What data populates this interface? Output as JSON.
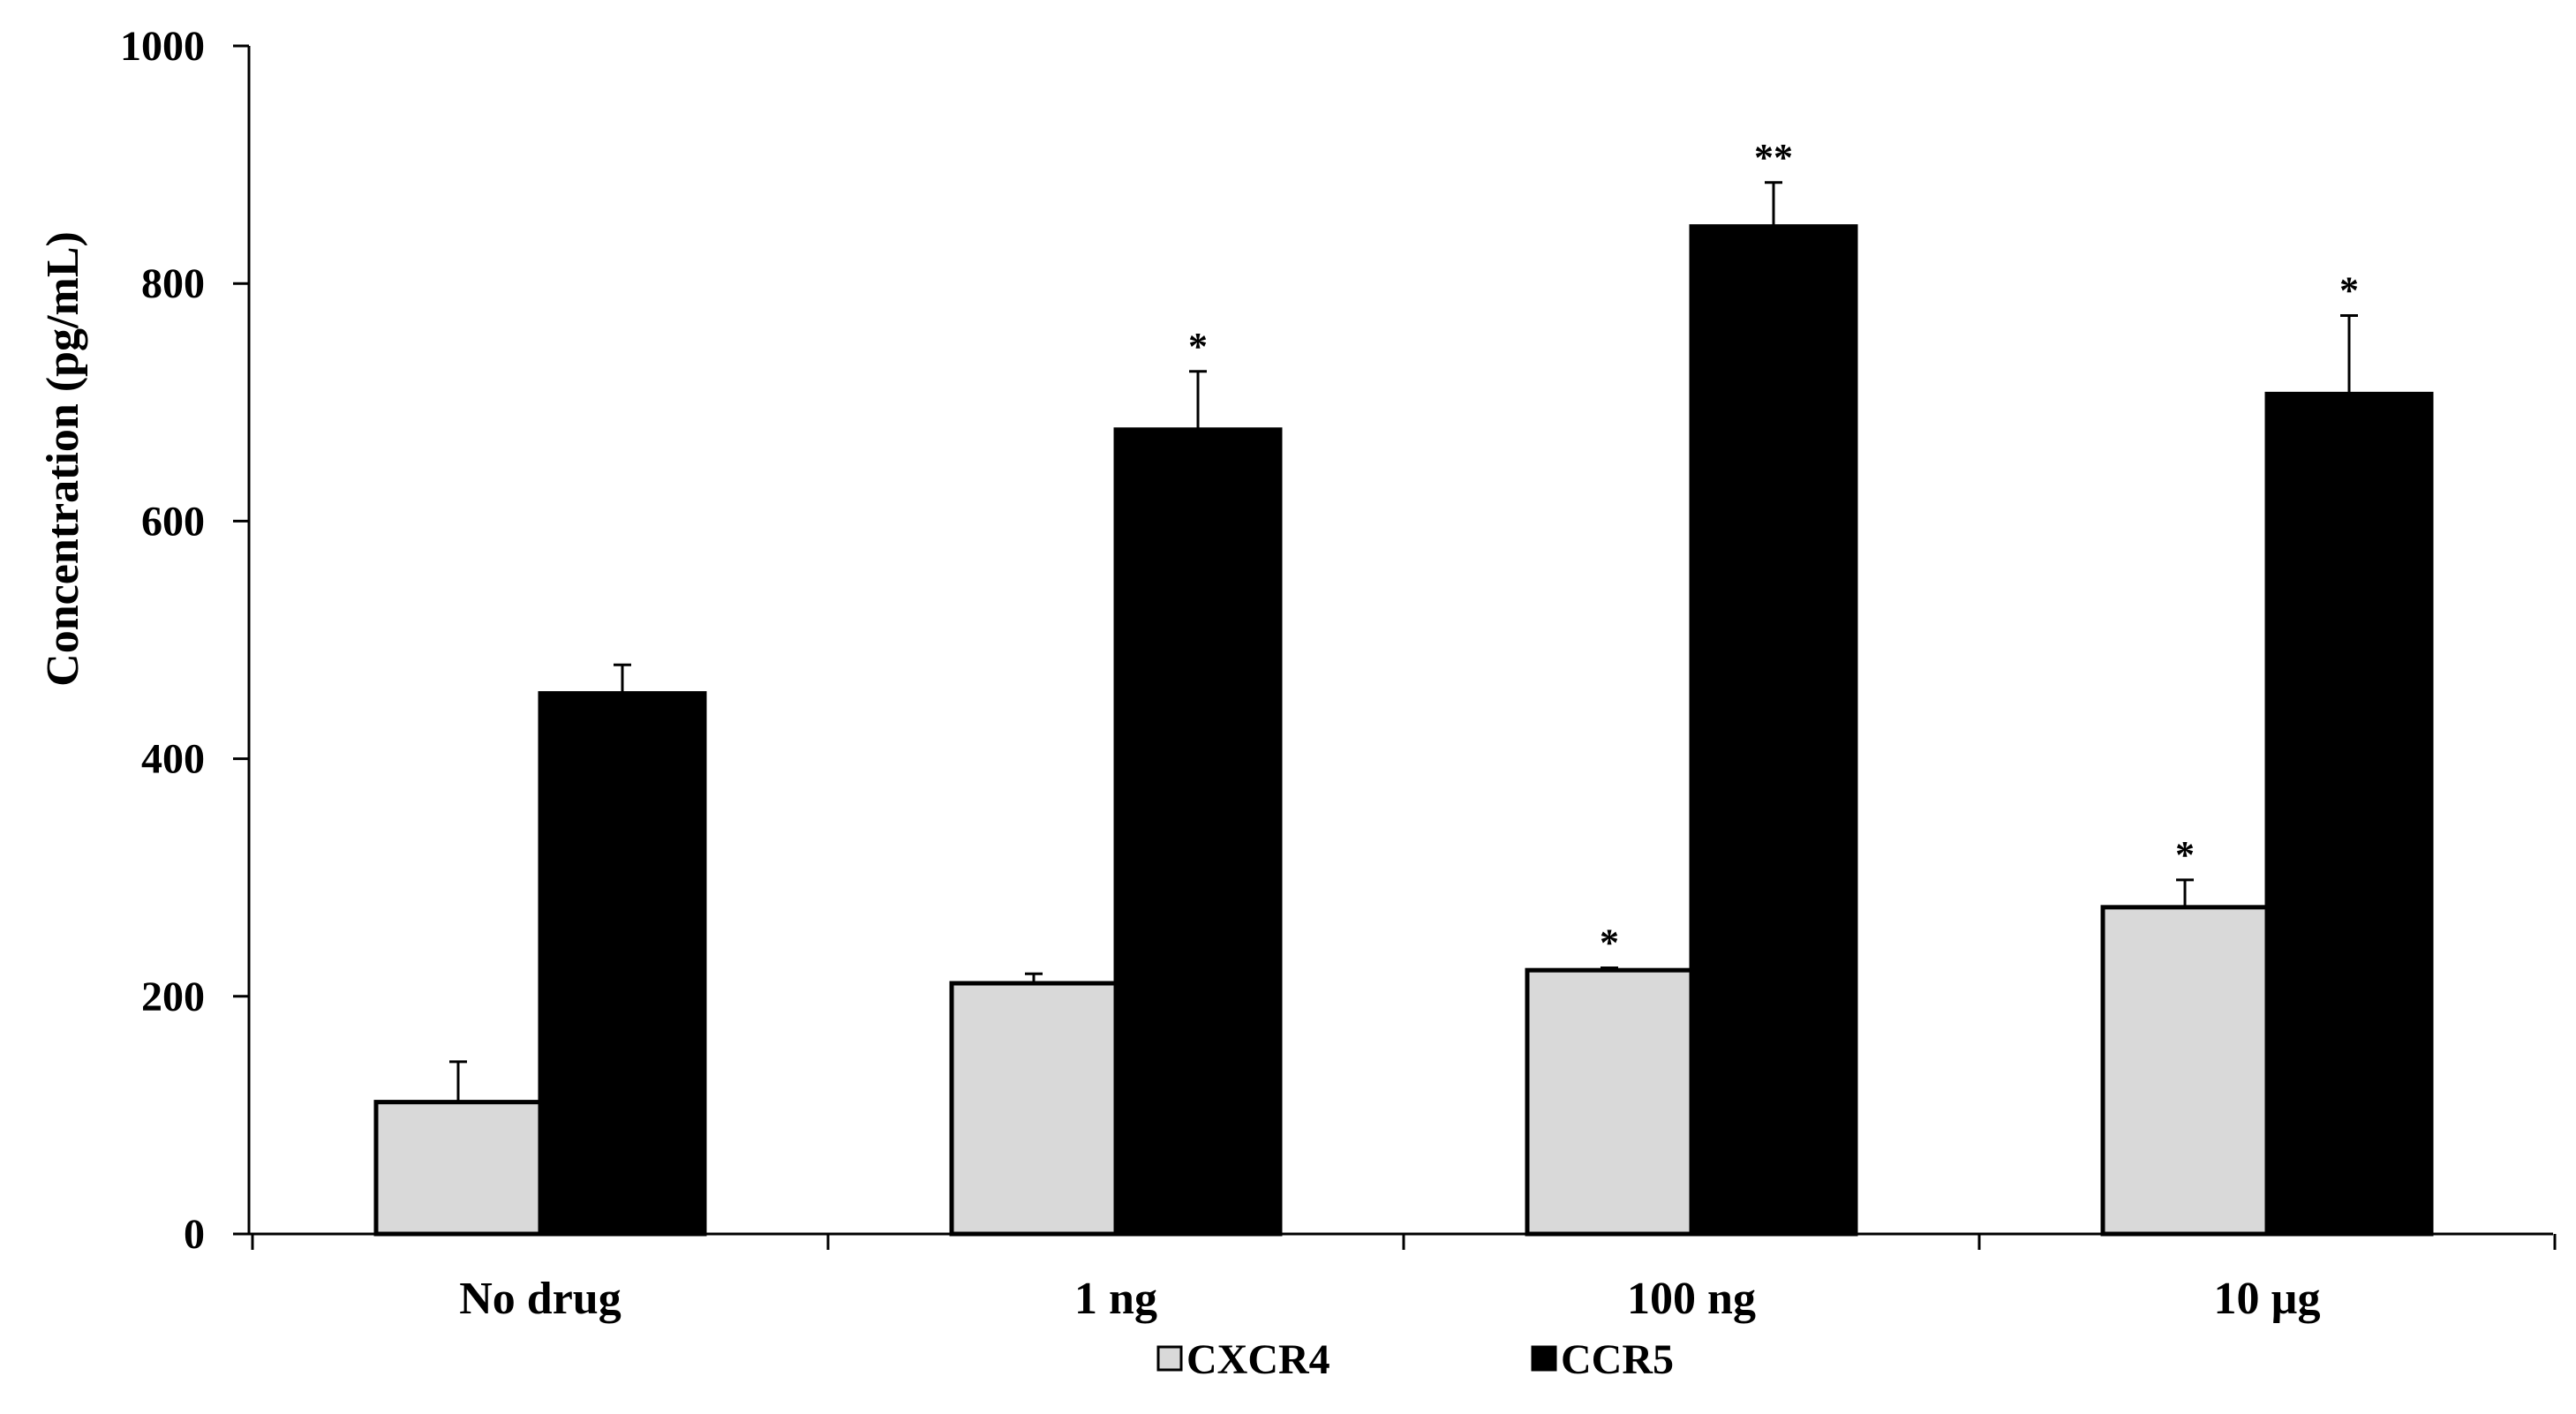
{
  "chart_data": {
    "type": "bar",
    "title": "",
    "xlabel": "",
    "ylabel": "Concentration (pg/mL)",
    "ylim": [
      0,
      1000
    ],
    "yticks": [
      0,
      200,
      400,
      600,
      800,
      1000
    ],
    "ytick_labels": [
      "0",
      "200",
      "400",
      "600",
      "800",
      "1000"
    ],
    "categories": [
      "No drug",
      "1 ng",
      "100 ng",
      "10 µg"
    ],
    "series": [
      {
        "name": "CXCR4",
        "color": "#d9d9d9",
        "values": [
          111,
          211,
          222,
          275
        ],
        "errors": [
          34,
          8,
          2,
          23
        ],
        "significance": [
          "",
          "",
          "*",
          "*"
        ]
      },
      {
        "name": "CCR5",
        "color": "#000000",
        "values": [
          455,
          677,
          848,
          707
        ],
        "errors": [
          24,
          49,
          37,
          66
        ],
        "significance": [
          "",
          "*",
          "**",
          "*"
        ]
      }
    ],
    "legend": {
      "position": "bottom-center",
      "entries": [
        "CXCR4",
        "CCR5"
      ]
    },
    "grid": false
  }
}
